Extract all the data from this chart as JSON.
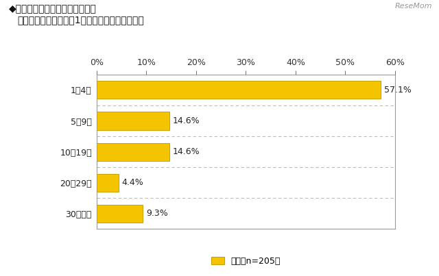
{
  "title_line1": "◆採用予定人数（自由回答形式）",
  "title_line2": "対象者：今年の採用を1人以上行う予定がある人",
  "categories": [
    "1～4人",
    "5～9人",
    "10～19人",
    "20～29人",
    "30人以上"
  ],
  "values": [
    57.1,
    14.6,
    14.6,
    4.4,
    9.3
  ],
  "bar_color": "#F5C400",
  "bar_edge_color": "#C8A000",
  "xlim": [
    0,
    60
  ],
  "xticks": [
    0,
    10,
    20,
    30,
    40,
    50,
    60
  ],
  "value_labels": [
    "57.1%",
    "14.6%",
    "14.6%",
    "4.4%",
    "9.3%"
  ],
  "legend_label": "合計【n=205】",
  "background_color": "#ffffff",
  "separator_color": "#bbbbbb",
  "border_color": "#999999",
  "watermark": "ReseMom",
  "title_fontsize": 10,
  "label_fontsize": 9,
  "value_fontsize": 9,
  "tick_fontsize": 9
}
